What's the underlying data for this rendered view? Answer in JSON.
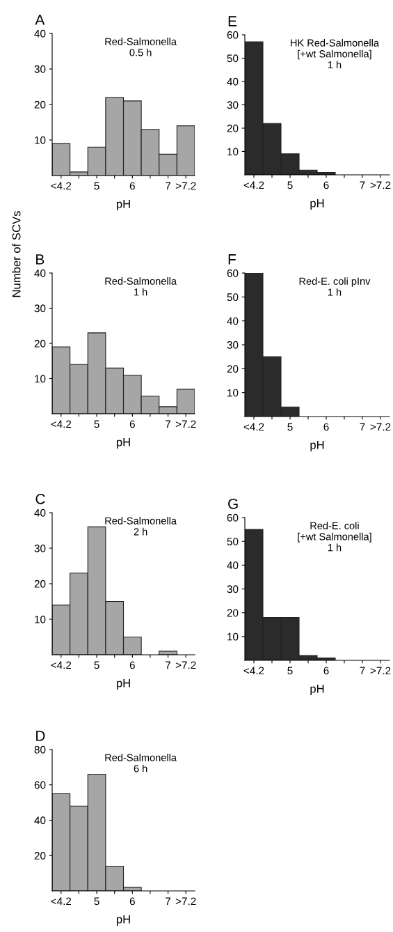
{
  "chart_data": [
    {
      "type": "bar",
      "title": "A",
      "xlabel": "pH",
      "categories": [
        "<4.2",
        null,
        "5",
        null,
        "6",
        null,
        "7",
        ">7.2"
      ],
      "values": [
        9,
        1,
        8,
        22,
        21,
        13,
        6,
        14
      ],
      "color": "#a6a6a6",
      "ylim": [
        0,
        40
      ],
      "yticks": [
        10,
        20,
        30,
        40
      ],
      "annotations": [
        "Red-Salmonella\n0.5 h"
      ]
    },
    {
      "type": "bar",
      "title": "B",
      "xlabel": "pH",
      "ylabel": "Number of SCVs",
      "categories": [
        "<4.2",
        null,
        "5",
        null,
        "6",
        null,
        "7",
        ">7.2"
      ],
      "values": [
        19,
        14,
        23,
        13,
        11,
        5,
        2,
        7
      ],
      "color": "#a6a6a6",
      "ylim": [
        0,
        40
      ],
      "yticks": [
        10,
        20,
        30,
        40
      ],
      "annotations": [
        "Red-Salmonella\n1 h"
      ]
    },
    {
      "type": "bar",
      "title": "C",
      "xlabel": "pH",
      "categories": [
        "<4.2",
        null,
        "5",
        null,
        "6",
        null,
        "7",
        ">7.2"
      ],
      "values": [
        14,
        23,
        36,
        15,
        5,
        0,
        1,
        0
      ],
      "color": "#a6a6a6",
      "ylim": [
        0,
        40
      ],
      "yticks": [
        10,
        20,
        30,
        40
      ],
      "annotations": [
        "Red-Salmonella\n2 h"
      ]
    },
    {
      "type": "bar",
      "title": "D",
      "xlabel": "pH",
      "categories": [
        "<4.2",
        null,
        "5",
        null,
        "6",
        null,
        "7",
        ">7.2"
      ],
      "values": [
        55,
        48,
        66,
        14,
        2,
        0,
        0,
        0
      ],
      "color": "#a6a6a6",
      "ylim": [
        0,
        80
      ],
      "yticks": [
        20,
        40,
        60,
        80
      ],
      "annotations": [
        "Red-Salmonella\n6 h"
      ]
    },
    {
      "type": "bar",
      "title": "E",
      "xlabel": "pH",
      "categories": [
        "<4.2",
        null,
        "5",
        null,
        "6",
        null,
        "7",
        ">7.2"
      ],
      "values": [
        57,
        22,
        9,
        2,
        1,
        0,
        0,
        0
      ],
      "color": "#2b2b2b",
      "ylim": [
        0,
        60
      ],
      "yticks": [
        10,
        20,
        30,
        40,
        50,
        60
      ],
      "annotations": [
        "HK Red-Salmonella\n[+wt Salmonella]\n1 h"
      ]
    },
    {
      "type": "bar",
      "title": "F",
      "xlabel": "pH",
      "categories": [
        "<4.2",
        null,
        "5",
        null,
        "6",
        null,
        "7",
        ">7.2"
      ],
      "values": [
        60,
        25,
        4,
        0,
        0,
        0,
        0,
        0
      ],
      "color": "#2b2b2b",
      "ylim": [
        0,
        60
      ],
      "yticks": [
        10,
        20,
        30,
        40,
        50,
        60
      ],
      "annotations": [
        "Red-E. coli pInv\n1 h"
      ]
    },
    {
      "type": "bar",
      "title": "G",
      "xlabel": "pH",
      "categories": [
        "<4.2",
        null,
        "5",
        null,
        "6",
        null,
        "7",
        ">7.2"
      ],
      "values": [
        55,
        18,
        18,
        2,
        1,
        0,
        0,
        0
      ],
      "color": "#2b2b2b",
      "ylim": [
        0,
        60
      ],
      "yticks": [
        10,
        20,
        30,
        40,
        50,
        60
      ],
      "annotations": [
        "Red-E. coli\n[+wt Salmonella]\n1 h"
      ]
    }
  ]
}
